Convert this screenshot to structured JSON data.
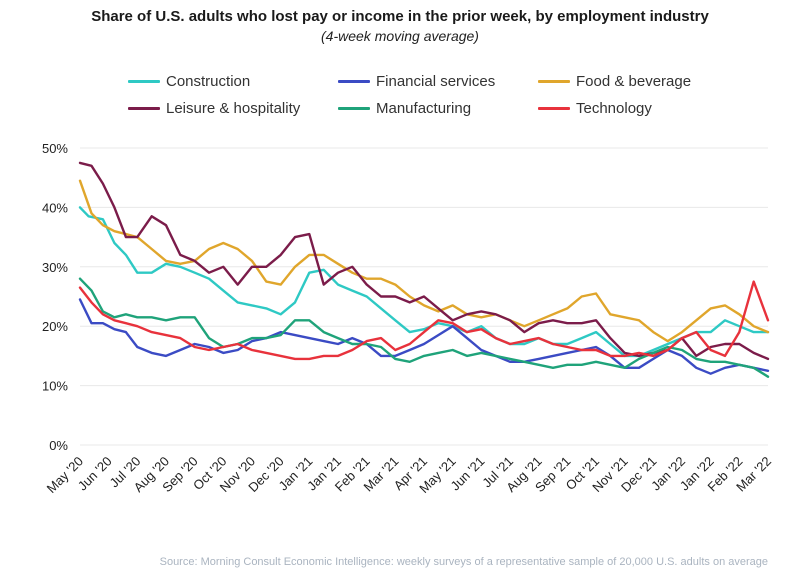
{
  "chart_data": {
    "type": "line",
    "title": "Share of U.S. adults who lost pay or income in the prior week, by employment industry",
    "subtitle": "(4-week moving average)",
    "ylim": [
      0,
      50
    ],
    "yticks": [
      "0%",
      "10%",
      "20%",
      "30%",
      "40%",
      "50%"
    ],
    "ytick_values": [
      0,
      10,
      20,
      30,
      40,
      50
    ],
    "x_tick_labels": [
      "May '20",
      "Jun '20",
      "Jul '20",
      "Aug '20",
      "Sep '20",
      "Oct '20",
      "Nov '20",
      "Dec '20",
      "Jan '21",
      "Jan '21",
      "Feb '21",
      "Mar '21",
      "Apr '21",
      "May '21",
      "Jun '21",
      "Jul '21",
      "Aug '21",
      "Sep '21",
      "Oct '21",
      "Nov '21",
      "Dec '21",
      "Jan '22",
      "Jan '22",
      "Feb '22",
      "Mar '22"
    ],
    "x_index_range": [
      0,
      24
    ],
    "series": [
      {
        "name": "Construction",
        "color": "#2ec9c4",
        "points": [
          [
            0,
            40
          ],
          [
            0.3,
            38.5
          ],
          [
            0.8,
            38
          ],
          [
            1.2,
            34
          ],
          [
            1.6,
            32
          ],
          [
            2,
            29
          ],
          [
            2.5,
            29
          ],
          [
            3,
            30.5
          ],
          [
            3.5,
            30
          ],
          [
            4,
            29
          ],
          [
            4.5,
            28
          ],
          [
            5,
            26
          ],
          [
            5.5,
            24
          ],
          [
            6,
            23.5
          ],
          [
            6.5,
            23
          ],
          [
            7,
            22
          ],
          [
            7.5,
            24
          ],
          [
            8,
            29
          ],
          [
            8.5,
            29.5
          ],
          [
            9,
            27
          ],
          [
            9.5,
            26
          ],
          [
            10,
            25
          ],
          [
            10.5,
            23
          ],
          [
            11,
            21
          ],
          [
            11.5,
            19
          ],
          [
            12,
            19.5
          ],
          [
            12.5,
            20.5
          ],
          [
            13,
            20
          ],
          [
            13.5,
            19
          ],
          [
            14,
            20
          ],
          [
            14.5,
            18
          ],
          [
            15,
            17
          ],
          [
            15.5,
            17
          ],
          [
            16,
            18
          ],
          [
            16.5,
            17
          ],
          [
            17,
            17
          ],
          [
            17.5,
            18
          ],
          [
            18,
            19
          ],
          [
            18.5,
            17
          ],
          [
            19,
            15
          ],
          [
            19.5,
            15
          ],
          [
            20,
            16
          ],
          [
            20.5,
            17
          ],
          [
            21,
            18
          ],
          [
            21.5,
            19
          ],
          [
            22,
            19
          ],
          [
            22.5,
            21
          ],
          [
            23,
            20
          ],
          [
            23.5,
            19
          ],
          [
            24,
            19
          ]
        ]
      },
      {
        "name": "Financial services",
        "color": "#3b4bc4",
        "points": [
          [
            0,
            24.5
          ],
          [
            0.4,
            20.5
          ],
          [
            0.8,
            20.5
          ],
          [
            1.2,
            19.5
          ],
          [
            1.6,
            19
          ],
          [
            2,
            16.5
          ],
          [
            2.5,
            15.5
          ],
          [
            3,
            15
          ],
          [
            3.5,
            16
          ],
          [
            4,
            17
          ],
          [
            4.5,
            16.5
          ],
          [
            5,
            15.5
          ],
          [
            5.5,
            16
          ],
          [
            6,
            17.5
          ],
          [
            6.5,
            18
          ],
          [
            7,
            19
          ],
          [
            7.5,
            18.5
          ],
          [
            8,
            18
          ],
          [
            8.5,
            17.5
          ],
          [
            9,
            17
          ],
          [
            9.5,
            18
          ],
          [
            10,
            17
          ],
          [
            10.5,
            15
          ],
          [
            11,
            15
          ],
          [
            11.5,
            16
          ],
          [
            12,
            17
          ],
          [
            12.5,
            18.5
          ],
          [
            13,
            20
          ],
          [
            13.5,
            18
          ],
          [
            14,
            16
          ],
          [
            14.5,
            15
          ],
          [
            15,
            14
          ],
          [
            15.5,
            14
          ],
          [
            16,
            14.5
          ],
          [
            16.5,
            15
          ],
          [
            17,
            15.5
          ],
          [
            17.5,
            16
          ],
          [
            18,
            16.5
          ],
          [
            18.5,
            15
          ],
          [
            19,
            13
          ],
          [
            19.5,
            13
          ],
          [
            20,
            14.5
          ],
          [
            20.5,
            16
          ],
          [
            21,
            15
          ],
          [
            21.5,
            13
          ],
          [
            22,
            12
          ],
          [
            22.5,
            13
          ],
          [
            23,
            13.5
          ],
          [
            23.5,
            13
          ],
          [
            24,
            12.5
          ]
        ]
      },
      {
        "name": "Food & beverage",
        "color": "#e0a62c",
        "points": [
          [
            0,
            44.5
          ],
          [
            0.4,
            39
          ],
          [
            0.8,
            37
          ],
          [
            1.2,
            36
          ],
          [
            1.6,
            35.5
          ],
          [
            2,
            35
          ],
          [
            2.5,
            33
          ],
          [
            3,
            31
          ],
          [
            3.5,
            30.5
          ],
          [
            4,
            31
          ],
          [
            4.5,
            33
          ],
          [
            5,
            34
          ],
          [
            5.5,
            33
          ],
          [
            6,
            31
          ],
          [
            6.5,
            27.5
          ],
          [
            7,
            27
          ],
          [
            7.5,
            30
          ],
          [
            8,
            32
          ],
          [
            8.5,
            32
          ],
          [
            9,
            30.5
          ],
          [
            9.5,
            29
          ],
          [
            10,
            28
          ],
          [
            10.5,
            28
          ],
          [
            11,
            27
          ],
          [
            11.5,
            25
          ],
          [
            12,
            23.5
          ],
          [
            12.5,
            22.5
          ],
          [
            13,
            23.5
          ],
          [
            13.5,
            22
          ],
          [
            14,
            21.5
          ],
          [
            14.5,
            22
          ],
          [
            15,
            21
          ],
          [
            15.5,
            20
          ],
          [
            16,
            21
          ],
          [
            16.5,
            22
          ],
          [
            17,
            23
          ],
          [
            17.5,
            25
          ],
          [
            18,
            25.5
          ],
          [
            18.5,
            22
          ],
          [
            19,
            21.5
          ],
          [
            19.5,
            21
          ],
          [
            20,
            19
          ],
          [
            20.5,
            17.5
          ],
          [
            21,
            19
          ],
          [
            21.5,
            21
          ],
          [
            22,
            23
          ],
          [
            22.5,
            23.5
          ],
          [
            23,
            22
          ],
          [
            23.5,
            20
          ],
          [
            24,
            19
          ]
        ]
      },
      {
        "name": "Leisure & hospitality",
        "color": "#7b1c4a",
        "points": [
          [
            0,
            47.5
          ],
          [
            0.4,
            47
          ],
          [
            0.8,
            44
          ],
          [
            1.2,
            40
          ],
          [
            1.6,
            35
          ],
          [
            2,
            35
          ],
          [
            2.5,
            38.5
          ],
          [
            3,
            37
          ],
          [
            3.5,
            32
          ],
          [
            4,
            31
          ],
          [
            4.5,
            29
          ],
          [
            5,
            30
          ],
          [
            5.5,
            27
          ],
          [
            6,
            30
          ],
          [
            6.5,
            30
          ],
          [
            7,
            32
          ],
          [
            7.5,
            35
          ],
          [
            8,
            35.5
          ],
          [
            8.5,
            27
          ],
          [
            9,
            29
          ],
          [
            9.5,
            30
          ],
          [
            10,
            27
          ],
          [
            10.5,
            25
          ],
          [
            11,
            25
          ],
          [
            11.5,
            24
          ],
          [
            12,
            25
          ],
          [
            12.5,
            23
          ],
          [
            13,
            21
          ],
          [
            13.5,
            22
          ],
          [
            14,
            22.5
          ],
          [
            14.5,
            22
          ],
          [
            15,
            21
          ],
          [
            15.5,
            19
          ],
          [
            16,
            20.5
          ],
          [
            16.5,
            21
          ],
          [
            17,
            20.5
          ],
          [
            17.5,
            20.5
          ],
          [
            18,
            21
          ],
          [
            18.5,
            18
          ],
          [
            19,
            15.5
          ],
          [
            19.5,
            15
          ],
          [
            20,
            15.5
          ],
          [
            20.5,
            16
          ],
          [
            21,
            18
          ],
          [
            21.5,
            15
          ],
          [
            22,
            16.5
          ],
          [
            22.5,
            17
          ],
          [
            23,
            17
          ],
          [
            23.5,
            15.5
          ],
          [
            24,
            14.5
          ]
        ]
      },
      {
        "name": "Manufacturing",
        "color": "#1fa37a",
        "points": [
          [
            0,
            28
          ],
          [
            0.4,
            26
          ],
          [
            0.8,
            22.5
          ],
          [
            1.2,
            21.5
          ],
          [
            1.6,
            22
          ],
          [
            2,
            21.5
          ],
          [
            2.5,
            21.5
          ],
          [
            3,
            21
          ],
          [
            3.5,
            21.5
          ],
          [
            4,
            21.5
          ],
          [
            4.5,
            18
          ],
          [
            5,
            16.5
          ],
          [
            5.5,
            17
          ],
          [
            6,
            18
          ],
          [
            6.5,
            18
          ],
          [
            7,
            18.5
          ],
          [
            7.5,
            21
          ],
          [
            8,
            21
          ],
          [
            8.5,
            19
          ],
          [
            9,
            18
          ],
          [
            9.5,
            17
          ],
          [
            10,
            17
          ],
          [
            10.5,
            16.5
          ],
          [
            11,
            14.5
          ],
          [
            11.5,
            14
          ],
          [
            12,
            15
          ],
          [
            12.5,
            15.5
          ],
          [
            13,
            16
          ],
          [
            13.5,
            15
          ],
          [
            14,
            15.5
          ],
          [
            14.5,
            15
          ],
          [
            15,
            14.5
          ],
          [
            15.5,
            14
          ],
          [
            16,
            13.5
          ],
          [
            16.5,
            13
          ],
          [
            17,
            13.5
          ],
          [
            17.5,
            13.5
          ],
          [
            18,
            14
          ],
          [
            18.5,
            13.5
          ],
          [
            19,
            13
          ],
          [
            19.5,
            14.5
          ],
          [
            20,
            15.5
          ],
          [
            20.5,
            16.5
          ],
          [
            21,
            16
          ],
          [
            21.5,
            14.5
          ],
          [
            22,
            14
          ],
          [
            22.5,
            14
          ],
          [
            23,
            13.5
          ],
          [
            23.5,
            13
          ],
          [
            24,
            11.5
          ]
        ]
      },
      {
        "name": "Technology",
        "color": "#e8323c",
        "points": [
          [
            0,
            26.5
          ],
          [
            0.4,
            24
          ],
          [
            0.8,
            22
          ],
          [
            1.2,
            21
          ],
          [
            1.6,
            20.5
          ],
          [
            2,
            20
          ],
          [
            2.5,
            19
          ],
          [
            3,
            18.5
          ],
          [
            3.5,
            18
          ],
          [
            4,
            16.5
          ],
          [
            4.5,
            16
          ],
          [
            5,
            16.5
          ],
          [
            5.5,
            17
          ],
          [
            6,
            16
          ],
          [
            6.5,
            15.5
          ],
          [
            7,
            15
          ],
          [
            7.5,
            14.5
          ],
          [
            8,
            14.5
          ],
          [
            8.5,
            15
          ],
          [
            9,
            15
          ],
          [
            9.5,
            16
          ],
          [
            10,
            17.5
          ],
          [
            10.5,
            18
          ],
          [
            11,
            16
          ],
          [
            11.5,
            17
          ],
          [
            12,
            19
          ],
          [
            12.5,
            21
          ],
          [
            13,
            20.5
          ],
          [
            13.5,
            19
          ],
          [
            14,
            19.5
          ],
          [
            14.5,
            18
          ],
          [
            15,
            17
          ],
          [
            15.5,
            17.5
          ],
          [
            16,
            18
          ],
          [
            16.5,
            17
          ],
          [
            17,
            16.5
          ],
          [
            17.5,
            16
          ],
          [
            18,
            16
          ],
          [
            18.5,
            15
          ],
          [
            19,
            15
          ],
          [
            19.5,
            15.5
          ],
          [
            20,
            15
          ],
          [
            20.5,
            16
          ],
          [
            21,
            18
          ],
          [
            21.5,
            19
          ],
          [
            22,
            16
          ],
          [
            22.5,
            15
          ],
          [
            23,
            19
          ],
          [
            23.5,
            27.5
          ],
          [
            24,
            21
          ]
        ]
      }
    ]
  },
  "source": "Source: Morning Consult Economic Intelligence: weekly surveys of a representative sample of 20,000 U.S. adults on average"
}
